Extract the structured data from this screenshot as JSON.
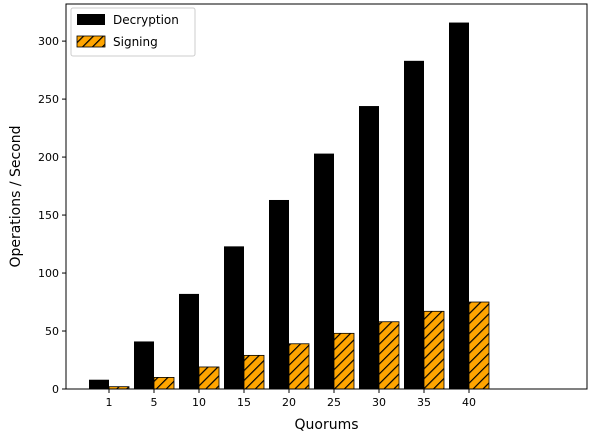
{
  "chart_data": {
    "type": "bar",
    "categories": [
      "1",
      "5",
      "10",
      "15",
      "20",
      "25",
      "30",
      "35",
      "40"
    ],
    "series": [
      {
        "name": "Decryption",
        "values": [
          8,
          41,
          82,
          123,
          163,
          203,
          244,
          283,
          316
        ],
        "color": "#000000",
        "hatch": false
      },
      {
        "name": "Signing",
        "values": [
          2,
          10,
          19,
          29,
          39,
          48,
          58,
          67,
          75
        ],
        "color": "#ffa500",
        "hatch": true
      }
    ],
    "xlabel": "Quorums",
    "ylabel": "Operations / Second",
    "ylim": [
      0,
      332
    ],
    "yticks": [
      0,
      50,
      100,
      150,
      200,
      250,
      300
    ],
    "grid": false,
    "legend": "top-left"
  }
}
